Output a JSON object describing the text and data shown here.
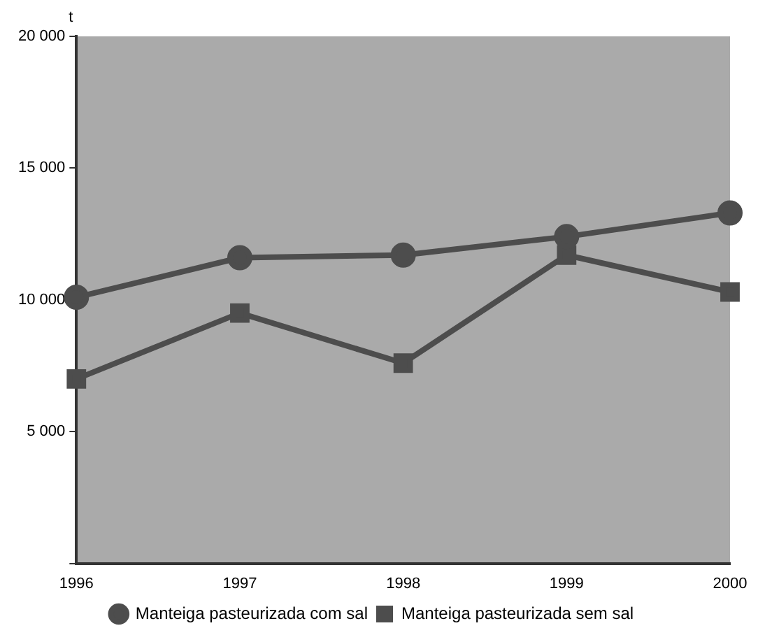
{
  "chart_data": {
    "type": "line",
    "ylabel": "t",
    "categories": [
      "1996",
      "1997",
      "1998",
      "1999",
      "2000"
    ],
    "series": [
      {
        "name": "Manteiga pasteurizada com sal",
        "color": "#4d4d4d",
        "marker": "circle",
        "values": [
          10100,
          11600,
          11700,
          12400,
          13300
        ]
      },
      {
        "name": "Manteiga pasteurizada sem sal",
        "color": "#4d4d4d",
        "marker": "square",
        "values": [
          7000,
          9500,
          7600,
          11700,
          10300
        ]
      }
    ],
    "ylim": [
      0,
      20000
    ],
    "yticks": [
      {
        "value": 0,
        "label": null
      },
      {
        "value": 5000,
        "label": "5 000"
      },
      {
        "value": 10000,
        "label": "10 000"
      },
      {
        "value": 15000,
        "label": "15 000"
      },
      {
        "value": 20000,
        "label": "20 000"
      }
    ],
    "grid": false,
    "legend": "bottom"
  }
}
